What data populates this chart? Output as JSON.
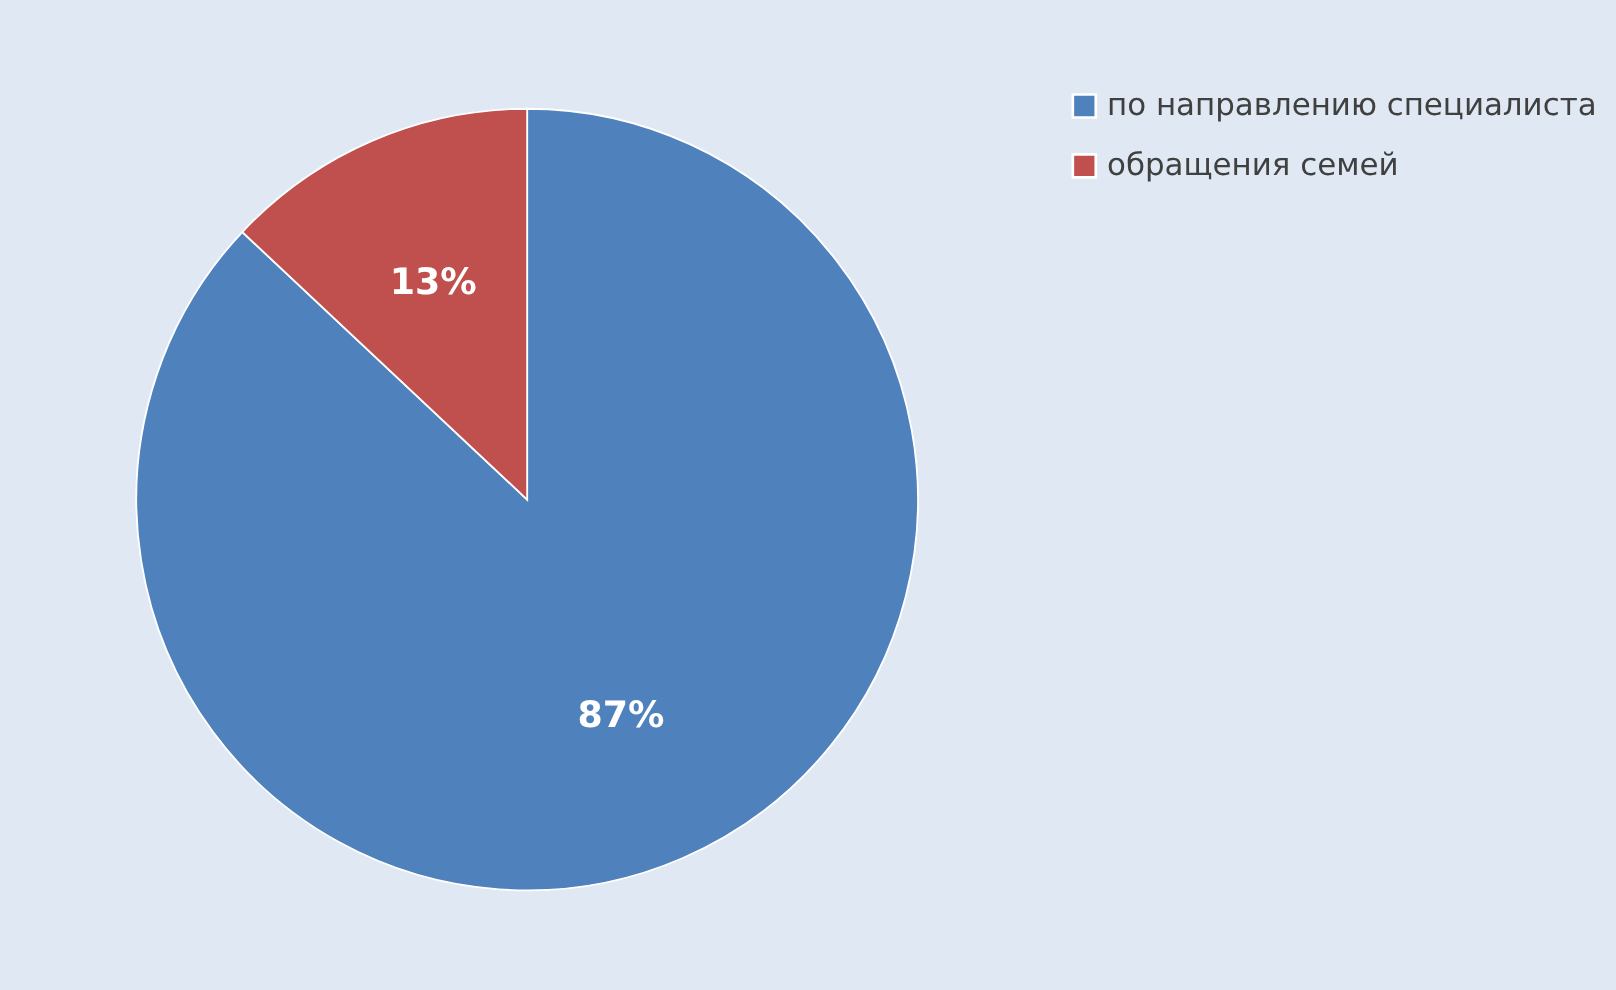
{
  "chart_data": {
    "type": "pie",
    "categories": [
      "по направлению специалиста",
      "обращения семей"
    ],
    "values": [
      87,
      13
    ],
    "colors": [
      "#4f81bd",
      "#c0504d"
    ],
    "value_labels": [
      "87%",
      "13%"
    ],
    "legend": "right"
  }
}
